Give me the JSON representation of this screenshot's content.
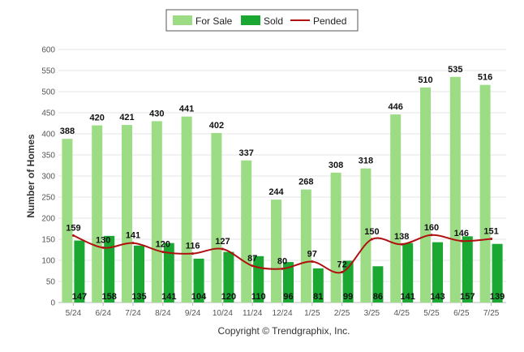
{
  "chart_data": {
    "type": "bar",
    "categories": [
      "5/24",
      "6/24",
      "7/24",
      "8/24",
      "9/24",
      "10/24",
      "11/24",
      "12/24",
      "1/25",
      "2/25",
      "3/25",
      "4/25",
      "5/25",
      "6/25",
      "7/25"
    ],
    "series": [
      {
        "name": "For Sale",
        "type": "bar",
        "color": "#9bdc84",
        "values": [
          388,
          420,
          421,
          430,
          441,
          402,
          337,
          244,
          268,
          308,
          318,
          446,
          510,
          535,
          516
        ]
      },
      {
        "name": "Sold",
        "type": "bar",
        "color": "#1aa832",
        "values": [
          147,
          158,
          135,
          141,
          104,
          120,
          110,
          96,
          81,
          99,
          86,
          141,
          143,
          157,
          139
        ]
      },
      {
        "name": "Pended",
        "type": "line",
        "color": "#b01010",
        "values": [
          159,
          130,
          141,
          120,
          116,
          127,
          87,
          80,
          97,
          72,
          150,
          138,
          160,
          146,
          151
        ]
      }
    ],
    "ylabel": "Number of Homes",
    "ylim": [
      0,
      600
    ],
    "yticks": [
      0,
      50,
      100,
      150,
      200,
      250,
      300,
      350,
      400,
      450,
      500,
      550,
      600
    ],
    "grid": true,
    "legend": "top-center"
  },
  "footer": {
    "copyright": "Copyright © Trendgraphix, Inc."
  }
}
